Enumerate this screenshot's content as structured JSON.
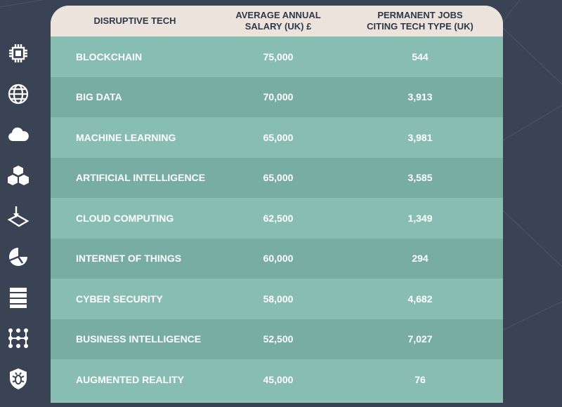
{
  "chart_data": {
    "type": "table",
    "columns": [
      "DISRUPTIVE TECH",
      [
        "AVERAGE ANNUAL",
        "SALARY (UK) £"
      ],
      [
        "PERMANENT JOBS",
        "CITING TECH TYPE (UK)"
      ]
    ],
    "rows": [
      {
        "tech": "BLOCKCHAIN",
        "salary": "75,000",
        "jobs": "544",
        "icon": "chip-icon"
      },
      {
        "tech": "BIG DATA",
        "salary": "70,000",
        "jobs": "3,913",
        "icon": "globe-icon"
      },
      {
        "tech": "MACHINE LEARNING",
        "salary": "65,000",
        "jobs": "3,981",
        "icon": "cloud-icon"
      },
      {
        "tech": "ARTIFICIAL INTELLIGENCE",
        "salary": "65,000",
        "jobs": "3,585",
        "icon": "cubes-icon"
      },
      {
        "tech": "CLOUD COMPUTING",
        "salary": "62,500",
        "jobs": "1,349",
        "icon": "device-icon"
      },
      {
        "tech": "INTERNET OF THINGS",
        "salary": "60,000",
        "jobs": "294",
        "icon": "pie-icon"
      },
      {
        "tech": "CYBER SECURITY",
        "salary": "58,000",
        "jobs": "4,682",
        "icon": "server-icon"
      },
      {
        "tech": "BUSINESS INTELLIGENCE",
        "salary": "52,500",
        "jobs": "7,027",
        "icon": "network-icon"
      },
      {
        "tech": "AUGMENTED REALITY",
        "salary": "45,000",
        "jobs": "76",
        "icon": "shield-bug-icon"
      }
    ]
  },
  "colors": {
    "background": "#3a4354",
    "header": "#ece4dc",
    "header_text": "#2f3848",
    "row_light": "#88beb1",
    "row_dark": "#78aea2",
    "cell_text": "#ffffff"
  }
}
